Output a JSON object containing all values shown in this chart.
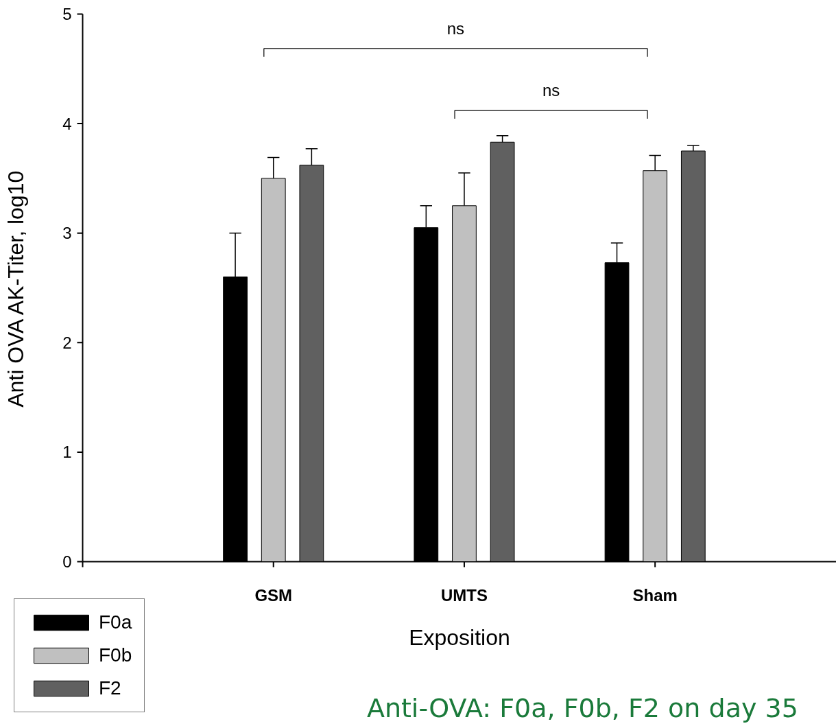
{
  "chart_data": {
    "type": "bar",
    "title": "Anti-OVA: F0a, F0b, F2 on day 35",
    "xlabel": "Exposition",
    "ylabel": "Anti OVA AK-Titer, log10",
    "categories": [
      "GSM",
      "UMTS",
      "Sham"
    ],
    "series": [
      {
        "name": "F0a",
        "color": "#000000",
        "values": [
          2.6,
          3.05,
          2.73
        ],
        "errors": [
          [
            2.6,
            3.0
          ],
          [
            3.05,
            3.25
          ],
          [
            2.73,
            2.91
          ]
        ]
      },
      {
        "name": "F0b",
        "color": "#c0c0c0",
        "values": [
          3.5,
          3.25,
          3.57
        ],
        "errors": [
          [
            3.5,
            3.69
          ],
          [
            3.25,
            3.55
          ],
          [
            3.57,
            3.71
          ]
        ]
      },
      {
        "name": "F2",
        "color": "#606060",
        "values": [
          3.62,
          3.83,
          3.75
        ],
        "errors": [
          [
            3.62,
            3.77
          ],
          [
            3.83,
            3.89
          ],
          [
            3.75,
            3.8
          ]
        ]
      }
    ],
    "ylim": [
      0,
      5
    ],
    "yticks": [
      0,
      1,
      2,
      3,
      4,
      5
    ],
    "annotations": [
      "ns",
      "ns"
    ],
    "grid": false,
    "legend": "bottom left"
  }
}
